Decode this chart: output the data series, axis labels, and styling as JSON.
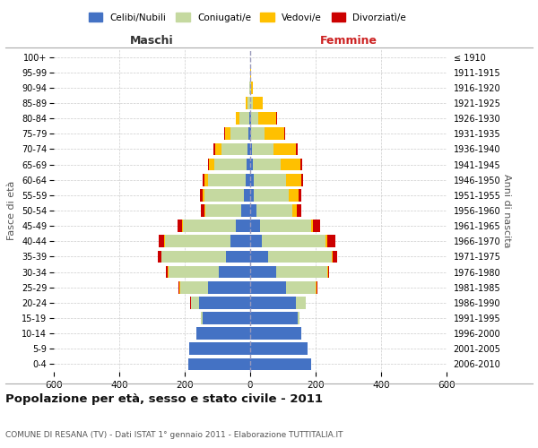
{
  "age_groups": [
    "0-4",
    "5-9",
    "10-14",
    "15-19",
    "20-24",
    "25-29",
    "30-34",
    "35-39",
    "40-44",
    "45-49",
    "50-54",
    "55-59",
    "60-64",
    "65-69",
    "70-74",
    "75-79",
    "80-84",
    "85-89",
    "90-94",
    "95-99",
    "100+"
  ],
  "birth_years": [
    "2006-2010",
    "2001-2005",
    "1996-2000",
    "1991-1995",
    "1986-1990",
    "1981-1985",
    "1976-1980",
    "1971-1975",
    "1966-1970",
    "1961-1965",
    "1956-1960",
    "1951-1955",
    "1946-1950",
    "1941-1945",
    "1936-1940",
    "1931-1935",
    "1926-1930",
    "1921-1925",
    "1916-1920",
    "1911-1915",
    "≤ 1910"
  ],
  "male": {
    "celibi": [
      190,
      185,
      165,
      145,
      155,
      130,
      95,
      75,
      60,
      45,
      28,
      20,
      15,
      10,
      8,
      5,
      2,
      0,
      0,
      0,
      0
    ],
    "coniugati": [
      0,
      0,
      0,
      5,
      25,
      85,
      155,
      195,
      200,
      160,
      110,
      120,
      115,
      100,
      80,
      55,
      30,
      8,
      2,
      0,
      0
    ],
    "vedovi": [
      0,
      0,
      0,
      0,
      2,
      2,
      2,
      2,
      2,
      3,
      3,
      5,
      10,
      15,
      20,
      18,
      12,
      5,
      0,
      0,
      0
    ],
    "divorziati": [
      0,
      0,
      0,
      0,
      2,
      3,
      5,
      10,
      18,
      15,
      10,
      8,
      5,
      3,
      3,
      2,
      0,
      0,
      0,
      0,
      0
    ]
  },
  "female": {
    "nubili": [
      185,
      175,
      155,
      145,
      140,
      110,
      80,
      55,
      35,
      30,
      18,
      12,
      10,
      8,
      5,
      3,
      2,
      0,
      0,
      0,
      0
    ],
    "coniugate": [
      0,
      0,
      0,
      5,
      30,
      90,
      155,
      195,
      195,
      155,
      110,
      105,
      100,
      85,
      65,
      40,
      22,
      8,
      2,
      0,
      0
    ],
    "vedove": [
      0,
      0,
      0,
      0,
      0,
      2,
      2,
      3,
      5,
      8,
      15,
      30,
      45,
      60,
      70,
      60,
      55,
      30,
      5,
      2,
      0
    ],
    "divorziate": [
      0,
      0,
      0,
      0,
      0,
      3,
      5,
      12,
      25,
      20,
      12,
      10,
      8,
      5,
      5,
      3,
      2,
      0,
      0,
      0,
      0
    ]
  },
  "colors": {
    "celibi_nubili": "#4472c4",
    "coniugati": "#c5d9a0",
    "vedovi": "#ffc000",
    "divorziati": "#cc0000"
  },
  "xlim": 600,
  "title": "Popolazione per età, sesso e stato civile - 2011",
  "subtitle": "COMUNE DI RESANA (TV) - Dati ISTAT 1° gennaio 2011 - Elaborazione TUTTITALIA.IT",
  "ylabel": "Fasce di età",
  "ylabel_right": "Anni di nascita",
  "xlabel_left": "Maschi",
  "xlabel_right": "Femmine",
  "bg_color": "#ffffff",
  "grid_color": "#cccccc"
}
